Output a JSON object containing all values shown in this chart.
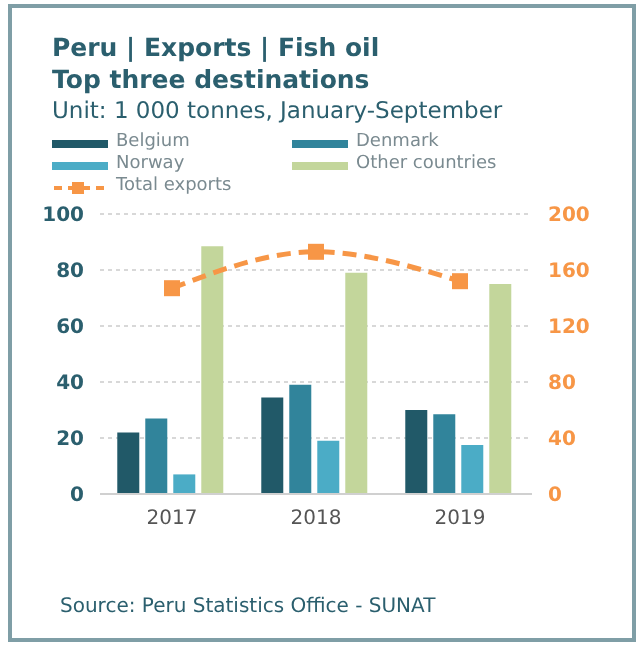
{
  "chart_data": {
    "type": "bar",
    "title": "Peru | Exports | Fish oil",
    "subtitle": "Top three destinations",
    "annotations": [
      "Unit: 1 000 tonnes, January-September",
      "Source: Peru Statistics Office - SUNAT"
    ],
    "categories": [
      "2017",
      "2018",
      "2019"
    ],
    "series": [
      {
        "name": "Belgium",
        "color": "#215968",
        "values": [
          22,
          34.5,
          30
        ]
      },
      {
        "name": "Denmark",
        "color": "#31849b",
        "values": [
          27,
          39,
          28.5
        ]
      },
      {
        "name": "Norway",
        "color": "#4bacc6",
        "values": [
          7,
          19,
          17.5
        ]
      },
      {
        "name": "Other countries",
        "color": "#c3d69b",
        "values": [
          88.5,
          79,
          75
        ]
      },
      {
        "name": "Total exports",
        "color": "#f79646",
        "type": "line",
        "axis": "y2",
        "values": [
          147,
          173,
          152
        ]
      }
    ],
    "ylim": [
      0,
      100
    ],
    "yticks": [
      0,
      20,
      40,
      60,
      80,
      100
    ],
    "y2lim": [
      0,
      200
    ],
    "y2ticks": [
      0,
      40,
      80,
      120,
      160,
      200
    ],
    "grid": "y",
    "legend": "top",
    "marker": "square",
    "line_style": "dashed"
  }
}
